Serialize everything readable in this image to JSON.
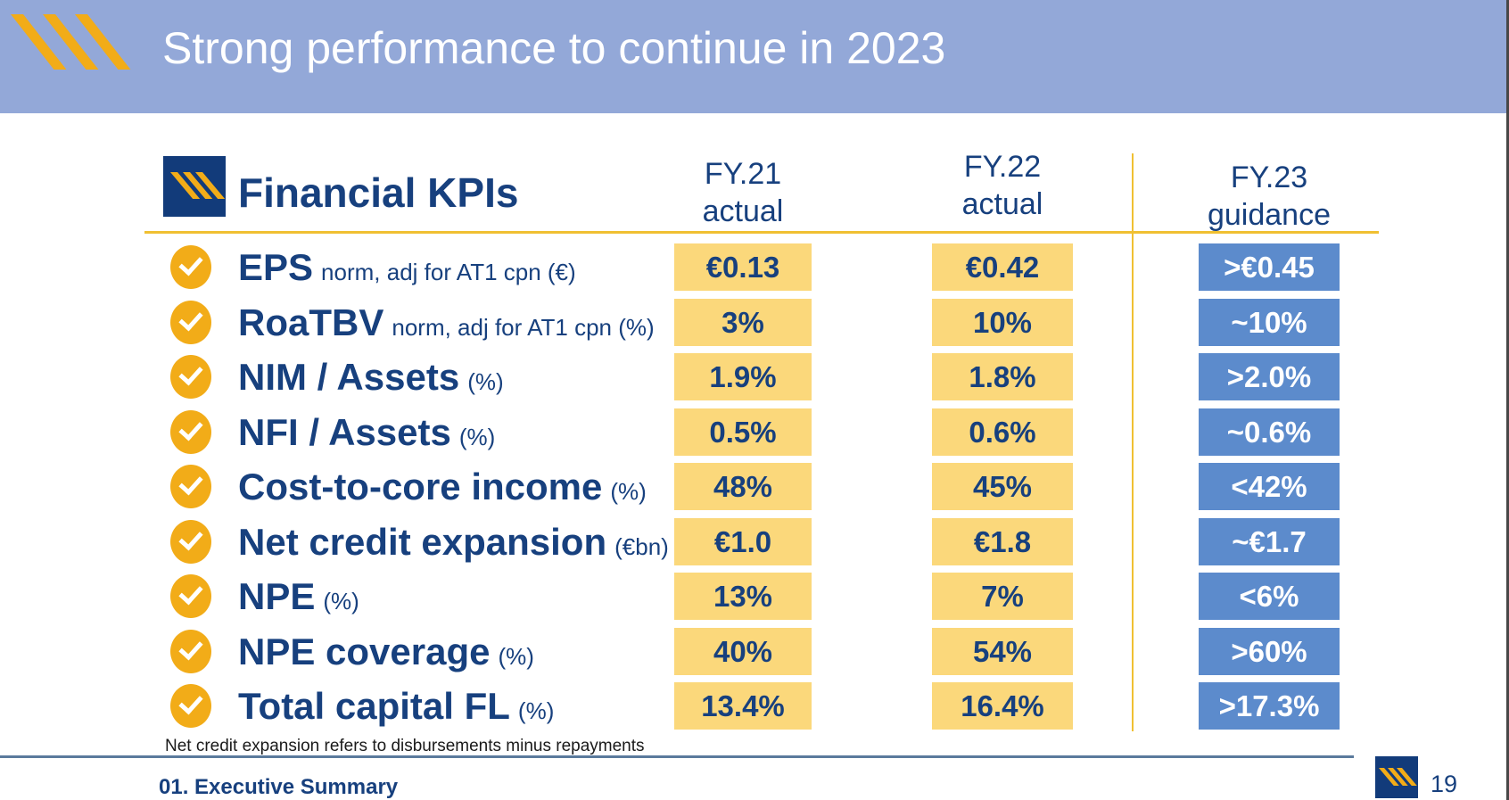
{
  "slide": {
    "title": "Strong performance to continue in 2023",
    "footnote": "Net credit expansion refers to disbursements minus repayments",
    "section_footer": "01. Executive Summary",
    "page_number": "19"
  },
  "table": {
    "title": "Financial KPIs",
    "columns": [
      {
        "line1": "FY.21",
        "line2": "actual"
      },
      {
        "line1": "FY.22",
        "line2": "actual"
      },
      {
        "line1": "FY.23",
        "line2": "guidance"
      }
    ],
    "rows": [
      {
        "name": "EPS",
        "qualifier": "norm, adj for AT1 cpn (€)",
        "fy21": "€0.13",
        "fy22": "€0.42",
        "fy23": ">€0.45"
      },
      {
        "name": "RoaTBV",
        "qualifier": "norm, adj for AT1 cpn (%)",
        "fy21": "3%",
        "fy22": "10%",
        "fy23": "~10%"
      },
      {
        "name": "NIM / Assets",
        "qualifier": "(%)",
        "fy21": "1.9%",
        "fy22": "1.8%",
        "fy23": ">2.0%"
      },
      {
        "name": "NFI / Assets",
        "qualifier": "(%)",
        "fy21": "0.5%",
        "fy22": "0.6%",
        "fy23": "~0.6%"
      },
      {
        "name": "Cost-to-core income",
        "qualifier": "(%)",
        "fy21": "48%",
        "fy22": "45%",
        "fy23": "<42%"
      },
      {
        "name": "Net credit expansion",
        "qualifier": "(€bn)",
        "fy21": "€1.0",
        "fy22": "€1.8",
        "fy23": "~€1.7"
      },
      {
        "name": "NPE",
        "qualifier": "(%)",
        "fy21": "13%",
        "fy22": "7%",
        "fy23": "<6%"
      },
      {
        "name": "NPE coverage",
        "qualifier": "(%)",
        "fy21": "40%",
        "fy22": "54%",
        "fy23": ">60%"
      },
      {
        "name": "Total capital FL",
        "qualifier": "(%)",
        "fy21": "13.4%",
        "fy22": "16.4%",
        "fy23": ">17.3%"
      }
    ]
  },
  "colors": {
    "banner_blue": "#93A8D8",
    "navy_text": "#17407E",
    "logo_navy": "#123B7A",
    "stripe_amber": "#F2AC18",
    "actual_box_yellow": "#FBD87B",
    "guidance_box_blue": "#5C8BCC",
    "rule_yellow": "#F0C032",
    "footer_rule_slate": "#5A7A9C"
  }
}
